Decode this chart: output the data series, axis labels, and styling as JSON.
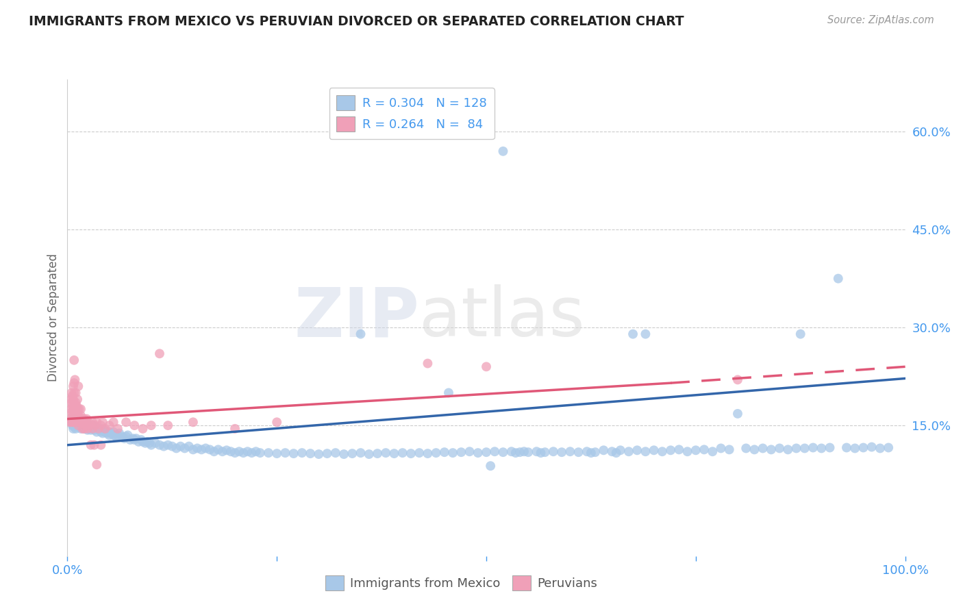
{
  "title": "IMMIGRANTS FROM MEXICO VS PERUVIAN DIVORCED OR SEPARATED CORRELATION CHART",
  "source": "Source: ZipAtlas.com",
  "ylabel": "Divorced or Separated",
  "watermark_zip": "ZIP",
  "watermark_atlas": "atlas",
  "legend_line1": "R = 0.304   N = 128",
  "legend_line2": "R = 0.264   N =  84",
  "legend_label_blue": "Immigrants from Mexico",
  "legend_label_pink": "Peruvians",
  "xlim": [
    0.0,
    1.0
  ],
  "ylim": [
    -0.05,
    0.68
  ],
  "xticks": [
    0.0,
    0.25,
    0.5,
    0.75,
    1.0
  ],
  "xticklabels": [
    "0.0%",
    "",
    "",
    "",
    "100.0%"
  ],
  "yticks": [
    0.15,
    0.3,
    0.45,
    0.6
  ],
  "yticklabels": [
    "15.0%",
    "30.0%",
    "45.0%",
    "60.0%"
  ],
  "grid_color": "#cccccc",
  "bg_color": "#ffffff",
  "blue_color": "#a8c8e8",
  "blue_line_color": "#3366aa",
  "pink_color": "#f0a0b8",
  "pink_line_color": "#e05878",
  "title_color": "#222222",
  "axis_label_color": "#666666",
  "tick_color": "#4499ee",
  "blue_scatter": [
    [
      0.005,
      0.155
    ],
    [
      0.006,
      0.15
    ],
    [
      0.007,
      0.16
    ],
    [
      0.007,
      0.145
    ],
    [
      0.008,
      0.155
    ],
    [
      0.008,
      0.148
    ],
    [
      0.009,
      0.152
    ],
    [
      0.009,
      0.158
    ],
    [
      0.01,
      0.15
    ],
    [
      0.01,
      0.155
    ],
    [
      0.01,
      0.145
    ],
    [
      0.011,
      0.158
    ],
    [
      0.012,
      0.152
    ],
    [
      0.012,
      0.148
    ],
    [
      0.013,
      0.155
    ],
    [
      0.013,
      0.15
    ],
    [
      0.014,
      0.148
    ],
    [
      0.015,
      0.155
    ],
    [
      0.015,
      0.15
    ],
    [
      0.016,
      0.145
    ],
    [
      0.017,
      0.152
    ],
    [
      0.018,
      0.148
    ],
    [
      0.018,
      0.155
    ],
    [
      0.019,
      0.15
    ],
    [
      0.02,
      0.145
    ],
    [
      0.02,
      0.152
    ],
    [
      0.022,
      0.148
    ],
    [
      0.023,
      0.155
    ],
    [
      0.024,
      0.143
    ],
    [
      0.025,
      0.15
    ],
    [
      0.025,
      0.145
    ],
    [
      0.027,
      0.148
    ],
    [
      0.028,
      0.143
    ],
    [
      0.03,
      0.145
    ],
    [
      0.03,
      0.15
    ],
    [
      0.032,
      0.143
    ],
    [
      0.033,
      0.148
    ],
    [
      0.035,
      0.14
    ],
    [
      0.036,
      0.145
    ],
    [
      0.038,
      0.143
    ],
    [
      0.04,
      0.14
    ],
    [
      0.04,
      0.145
    ],
    [
      0.042,
      0.138
    ],
    [
      0.044,
      0.143
    ],
    [
      0.045,
      0.14
    ],
    [
      0.047,
      0.138
    ],
    [
      0.05,
      0.135
    ],
    [
      0.05,
      0.14
    ],
    [
      0.052,
      0.138
    ],
    [
      0.055,
      0.135
    ],
    [
      0.055,
      0.14
    ],
    [
      0.058,
      0.133
    ],
    [
      0.06,
      0.135
    ],
    [
      0.062,
      0.138
    ],
    [
      0.065,
      0.133
    ],
    [
      0.068,
      0.13
    ],
    [
      0.07,
      0.133
    ],
    [
      0.072,
      0.135
    ],
    [
      0.075,
      0.128
    ],
    [
      0.078,
      0.13
    ],
    [
      0.08,
      0.128
    ],
    [
      0.082,
      0.13
    ],
    [
      0.085,
      0.125
    ],
    [
      0.088,
      0.128
    ],
    [
      0.09,
      0.125
    ],
    [
      0.093,
      0.123
    ],
    [
      0.095,
      0.125
    ],
    [
      0.098,
      0.123
    ],
    [
      0.1,
      0.12
    ],
    [
      0.105,
      0.123
    ],
    [
      0.11,
      0.12
    ],
    [
      0.115,
      0.118
    ],
    [
      0.12,
      0.12
    ],
    [
      0.125,
      0.118
    ],
    [
      0.13,
      0.115
    ],
    [
      0.135,
      0.118
    ],
    [
      0.14,
      0.115
    ],
    [
      0.145,
      0.118
    ],
    [
      0.15,
      0.113
    ],
    [
      0.155,
      0.115
    ],
    [
      0.16,
      0.113
    ],
    [
      0.165,
      0.115
    ],
    [
      0.17,
      0.113
    ],
    [
      0.175,
      0.11
    ],
    [
      0.18,
      0.113
    ],
    [
      0.185,
      0.11
    ],
    [
      0.19,
      0.112
    ],
    [
      0.195,
      0.11
    ],
    [
      0.2,
      0.108
    ],
    [
      0.205,
      0.11
    ],
    [
      0.21,
      0.108
    ],
    [
      0.215,
      0.11
    ],
    [
      0.22,
      0.108
    ],
    [
      0.225,
      0.11
    ],
    [
      0.23,
      0.108
    ],
    [
      0.24,
      0.108
    ],
    [
      0.25,
      0.107
    ],
    [
      0.26,
      0.108
    ],
    [
      0.27,
      0.107
    ],
    [
      0.28,
      0.108
    ],
    [
      0.29,
      0.107
    ],
    [
      0.3,
      0.106
    ],
    [
      0.31,
      0.107
    ],
    [
      0.32,
      0.108
    ],
    [
      0.33,
      0.106
    ],
    [
      0.34,
      0.107
    ],
    [
      0.35,
      0.108
    ],
    [
      0.36,
      0.106
    ],
    [
      0.37,
      0.107
    ],
    [
      0.38,
      0.108
    ],
    [
      0.39,
      0.107
    ],
    [
      0.4,
      0.108
    ],
    [
      0.41,
      0.107
    ],
    [
      0.42,
      0.108
    ],
    [
      0.43,
      0.107
    ],
    [
      0.44,
      0.108
    ],
    [
      0.45,
      0.109
    ],
    [
      0.455,
      0.2
    ],
    [
      0.46,
      0.108
    ],
    [
      0.47,
      0.109
    ],
    [
      0.48,
      0.11
    ],
    [
      0.49,
      0.108
    ],
    [
      0.5,
      0.109
    ],
    [
      0.505,
      0.088
    ],
    [
      0.51,
      0.11
    ],
    [
      0.52,
      0.109
    ],
    [
      0.53,
      0.11
    ],
    [
      0.535,
      0.108
    ],
    [
      0.54,
      0.109
    ],
    [
      0.545,
      0.11
    ],
    [
      0.55,
      0.109
    ],
    [
      0.56,
      0.11
    ],
    [
      0.565,
      0.108
    ],
    [
      0.57,
      0.109
    ],
    [
      0.58,
      0.11
    ],
    [
      0.59,
      0.109
    ],
    [
      0.6,
      0.11
    ],
    [
      0.61,
      0.109
    ],
    [
      0.62,
      0.11
    ],
    [
      0.625,
      0.108
    ],
    [
      0.63,
      0.109
    ],
    [
      0.64,
      0.112
    ],
    [
      0.65,
      0.11
    ],
    [
      0.655,
      0.108
    ],
    [
      0.66,
      0.112
    ],
    [
      0.67,
      0.11
    ],
    [
      0.675,
      0.29
    ],
    [
      0.68,
      0.112
    ],
    [
      0.69,
      0.11
    ],
    [
      0.7,
      0.112
    ],
    [
      0.71,
      0.11
    ],
    [
      0.72,
      0.112
    ],
    [
      0.73,
      0.113
    ],
    [
      0.74,
      0.11
    ],
    [
      0.75,
      0.112
    ],
    [
      0.76,
      0.113
    ],
    [
      0.77,
      0.11
    ],
    [
      0.78,
      0.115
    ],
    [
      0.79,
      0.113
    ],
    [
      0.8,
      0.168
    ],
    [
      0.81,
      0.115
    ],
    [
      0.82,
      0.113
    ],
    [
      0.83,
      0.115
    ],
    [
      0.84,
      0.113
    ],
    [
      0.85,
      0.115
    ],
    [
      0.86,
      0.113
    ],
    [
      0.87,
      0.115
    ],
    [
      0.875,
      0.29
    ],
    [
      0.88,
      0.115
    ],
    [
      0.89,
      0.116
    ],
    [
      0.9,
      0.115
    ],
    [
      0.91,
      0.116
    ],
    [
      0.92,
      0.375
    ],
    [
      0.93,
      0.116
    ],
    [
      0.94,
      0.115
    ],
    [
      0.95,
      0.116
    ],
    [
      0.96,
      0.117
    ],
    [
      0.97,
      0.115
    ],
    [
      0.98,
      0.116
    ],
    [
      0.52,
      0.57
    ],
    [
      0.35,
      0.29
    ],
    [
      0.69,
      0.29
    ]
  ],
  "pink_scatter": [
    [
      0.003,
      0.155
    ],
    [
      0.004,
      0.16
    ],
    [
      0.004,
      0.175
    ],
    [
      0.004,
      0.19
    ],
    [
      0.005,
      0.155
    ],
    [
      0.005,
      0.17
    ],
    [
      0.005,
      0.185
    ],
    [
      0.005,
      0.2
    ],
    [
      0.006,
      0.165
    ],
    [
      0.006,
      0.18
    ],
    [
      0.006,
      0.195
    ],
    [
      0.007,
      0.155
    ],
    [
      0.007,
      0.17
    ],
    [
      0.007,
      0.21
    ],
    [
      0.007,
      0.19
    ],
    [
      0.007,
      0.175
    ],
    [
      0.008,
      0.16
    ],
    [
      0.008,
      0.185
    ],
    [
      0.008,
      0.2
    ],
    [
      0.008,
      0.215
    ],
    [
      0.008,
      0.25
    ],
    [
      0.009,
      0.165
    ],
    [
      0.009,
      0.18
    ],
    [
      0.009,
      0.155
    ],
    [
      0.009,
      0.22
    ],
    [
      0.01,
      0.17
    ],
    [
      0.01,
      0.185
    ],
    [
      0.01,
      0.2
    ],
    [
      0.01,
      0.155
    ],
    [
      0.011,
      0.165
    ],
    [
      0.011,
      0.18
    ],
    [
      0.012,
      0.16
    ],
    [
      0.012,
      0.175
    ],
    [
      0.012,
      0.19
    ],
    [
      0.012,
      0.155
    ],
    [
      0.013,
      0.165
    ],
    [
      0.013,
      0.15
    ],
    [
      0.013,
      0.21
    ],
    [
      0.014,
      0.155
    ],
    [
      0.014,
      0.175
    ],
    [
      0.015,
      0.16
    ],
    [
      0.015,
      0.155
    ],
    [
      0.016,
      0.165
    ],
    [
      0.016,
      0.175
    ],
    [
      0.017,
      0.155
    ],
    [
      0.018,
      0.16
    ],
    [
      0.018,
      0.145
    ],
    [
      0.019,
      0.155
    ],
    [
      0.02,
      0.16
    ],
    [
      0.02,
      0.145
    ],
    [
      0.021,
      0.155
    ],
    [
      0.022,
      0.15
    ],
    [
      0.023,
      0.16
    ],
    [
      0.024,
      0.145
    ],
    [
      0.025,
      0.155
    ],
    [
      0.027,
      0.15
    ],
    [
      0.028,
      0.12
    ],
    [
      0.03,
      0.145
    ],
    [
      0.03,
      0.155
    ],
    [
      0.032,
      0.12
    ],
    [
      0.033,
      0.15
    ],
    [
      0.035,
      0.09
    ],
    [
      0.035,
      0.155
    ],
    [
      0.037,
      0.145
    ],
    [
      0.04,
      0.15
    ],
    [
      0.04,
      0.12
    ],
    [
      0.042,
      0.155
    ],
    [
      0.045,
      0.145
    ],
    [
      0.05,
      0.15
    ],
    [
      0.055,
      0.155
    ],
    [
      0.06,
      0.145
    ],
    [
      0.07,
      0.155
    ],
    [
      0.08,
      0.15
    ],
    [
      0.09,
      0.145
    ],
    [
      0.1,
      0.15
    ],
    [
      0.11,
      0.26
    ],
    [
      0.12,
      0.15
    ],
    [
      0.15,
      0.155
    ],
    [
      0.2,
      0.145
    ],
    [
      0.25,
      0.155
    ],
    [
      0.43,
      0.245
    ],
    [
      0.5,
      0.24
    ],
    [
      0.8,
      0.22
    ]
  ],
  "blue_trendline": [
    [
      0.0,
      0.12
    ],
    [
      1.0,
      0.222
    ]
  ],
  "pink_trendline_solid": [
    [
      0.0,
      0.16
    ],
    [
      0.72,
      0.215
    ]
  ],
  "pink_trendline_dashed": [
    [
      0.72,
      0.215
    ],
    [
      1.0,
      0.24
    ]
  ]
}
